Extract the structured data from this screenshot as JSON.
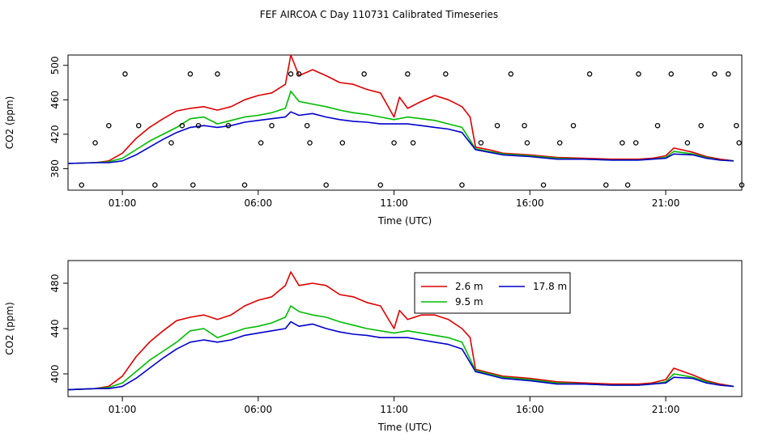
{
  "title": "FEF AIRCOA C  Day 110731  Calibrated Timeseries",
  "colors": {
    "s1": "#dd0000",
    "s2": "#00bb00",
    "s3": "#0000cc",
    "axis": "#000000"
  },
  "chart_data": [
    {
      "type": "line",
      "panel": "top",
      "xlabel": "Time (UTC)",
      "ylabel": "CO2 (ppm)",
      "xlim": [
        -1,
        23.8
      ],
      "ylim": [
        355,
        512
      ],
      "xticks": [
        1,
        6,
        11,
        16,
        21
      ],
      "xtick_labels": [
        "01:00",
        "06:00",
        "11:00",
        "16:00",
        "21:00"
      ],
      "yticks": [
        380,
        420,
        460,
        500
      ],
      "ytick_labels": [
        "380",
        "420",
        "460",
        "500"
      ],
      "series": [
        {
          "name": "2.6 m",
          "color": "#dd0000",
          "x": [
            -1,
            0,
            0.5,
            1,
            1.5,
            2,
            2.5,
            3,
            3.5,
            4,
            4.5,
            5,
            5.5,
            6,
            6.5,
            7,
            7.2,
            7.5,
            8,
            8.5,
            9,
            9.5,
            10,
            10.5,
            11,
            11.2,
            11.5,
            12,
            12.5,
            13,
            13.5,
            13.8,
            14,
            14.5,
            15,
            16,
            17,
            18,
            19,
            20,
            20.5,
            21,
            21.3,
            22,
            22.5,
            23,
            23.5
          ],
          "y": [
            386,
            387,
            389,
            398,
            415,
            428,
            438,
            447,
            450,
            452,
            448,
            452,
            460,
            465,
            468,
            478,
            512,
            488,
            495,
            488,
            480,
            478,
            472,
            468,
            440,
            463,
            450,
            458,
            465,
            460,
            452,
            440,
            405,
            402,
            398,
            396,
            393,
            392,
            391,
            391,
            392,
            395,
            404,
            399,
            394,
            391,
            389
          ]
        },
        {
          "name": "9.5 m",
          "color": "#00bb00",
          "x": [
            -1,
            0,
            0.5,
            1,
            1.5,
            2,
            2.5,
            3,
            3.5,
            4,
            4.5,
            5,
            5.5,
            6,
            6.5,
            7,
            7.2,
            7.5,
            8,
            8.5,
            9,
            9.5,
            10,
            10.5,
            11,
            11.5,
            12,
            12.5,
            13,
            13.5,
            14,
            14.5,
            15,
            16,
            17,
            18,
            19,
            20,
            20.5,
            21,
            21.3,
            22,
            22.5,
            23,
            23.5
          ],
          "y": [
            386,
            387,
            388,
            392,
            402,
            412,
            420,
            428,
            438,
            440,
            432,
            436,
            440,
            442,
            445,
            450,
            470,
            458,
            455,
            452,
            448,
            445,
            443,
            440,
            437,
            440,
            438,
            436,
            432,
            428,
            403,
            400,
            397,
            395,
            392,
            391,
            390,
            390,
            391,
            393,
            400,
            397,
            393,
            390,
            389
          ]
        },
        {
          "name": "17.8 m",
          "color": "#0000cc",
          "x": [
            -1,
            0,
            0.5,
            1,
            1.5,
            2,
            2.5,
            3,
            3.5,
            4,
            4.5,
            5,
            5.5,
            6,
            6.5,
            7,
            7.2,
            7.5,
            8,
            8.5,
            9,
            9.5,
            10,
            10.5,
            11,
            11.5,
            12,
            12.5,
            13,
            13.5,
            14,
            14.5,
            15,
            16,
            17,
            18,
            19,
            20,
            20.5,
            21,
            21.3,
            22,
            22.5,
            23,
            23.5
          ],
          "y": [
            386,
            387,
            387,
            389,
            396,
            405,
            414,
            422,
            428,
            430,
            428,
            430,
            434,
            436,
            438,
            440,
            446,
            442,
            444,
            440,
            437,
            435,
            434,
            432,
            432,
            432,
            430,
            428,
            426,
            422,
            402,
            399,
            396,
            394,
            391,
            391,
            390,
            390,
            391,
            392,
            397,
            396,
            392,
            390,
            389
          ]
        }
      ],
      "points": [
        {
          "name": "marker",
          "x": [
            -0.5,
            0,
            0.5,
            1.1,
            1.6,
            2.2,
            2.8,
            3.2,
            3.5,
            3.6,
            3.8,
            4.5,
            4.9,
            5.5,
            6.1,
            6.5,
            7.2,
            7.5,
            7.8,
            7.9,
            8.5,
            9.1,
            9.9,
            10.5,
            11,
            11.5,
            11.7,
            12.9,
            13.5,
            14.2,
            14.8,
            15.3,
            15.8,
            15.9,
            16.5,
            17.1,
            17.6,
            18.2,
            18.8,
            19.4,
            19.6,
            19.9,
            20,
            20.7,
            21.2,
            21.8,
            22.3,
            22.8,
            23.3,
            23.6,
            23.7,
            23.8
          ],
          "y": [
            361,
            410,
            430,
            490,
            430,
            361,
            410,
            430,
            490,
            361,
            430,
            490,
            430,
            361,
            410,
            430,
            490,
            490,
            430,
            410,
            361,
            410,
            490,
            361,
            410,
            490,
            410,
            490,
            361,
            410,
            430,
            490,
            430,
            410,
            361,
            410,
            430,
            490,
            361,
            410,
            361,
            410,
            490,
            430,
            490,
            410,
            430,
            490,
            490,
            430,
            410,
            361
          ]
        }
      ]
    },
    {
      "type": "line",
      "panel": "bottom",
      "xlabel": "Time (UTC)",
      "ylabel": "CO2 (ppm)",
      "xlim": [
        -1,
        23.8
      ],
      "ylim": [
        380,
        500
      ],
      "xticks": [
        1,
        6,
        11,
        16,
        21
      ],
      "xtick_labels": [
        "01:00",
        "06:00",
        "11:00",
        "16:00",
        "21:00"
      ],
      "yticks": [
        400,
        440,
        480
      ],
      "ytick_labels": [
        "400",
        "440",
        "480"
      ],
      "legend": {
        "entries": [
          "2.6 m",
          "9.5 m",
          "17.8 m"
        ],
        "placement": "top-right"
      },
      "series": [
        {
          "name": "2.6 m",
          "color": "#dd0000",
          "x": [
            -1,
            0,
            0.5,
            1,
            1.5,
            2,
            2.5,
            3,
            3.5,
            4,
            4.5,
            5,
            5.5,
            6,
            6.5,
            7,
            7.2,
            7.5,
            8,
            8.5,
            9,
            9.5,
            10,
            10.5,
            11,
            11.2,
            11.5,
            12,
            12.5,
            13,
            13.5,
            13.8,
            14,
            14.5,
            15,
            16,
            17,
            18,
            19,
            20,
            20.5,
            21,
            21.3,
            22,
            22.5,
            23,
            23.5
          ],
          "y": [
            386,
            387,
            389,
            398,
            415,
            428,
            438,
            447,
            450,
            452,
            448,
            452,
            460,
            465,
            468,
            478,
            490,
            478,
            480,
            478,
            470,
            468,
            463,
            460,
            440,
            456,
            448,
            452,
            452,
            448,
            440,
            432,
            404,
            401,
            398,
            396,
            393,
            392,
            391,
            391,
            392,
            395,
            405,
            399,
            394,
            391,
            389
          ]
        },
        {
          "name": "9.5 m",
          "color": "#00bb00",
          "x": [
            -1,
            0,
            0.5,
            1,
            1.5,
            2,
            2.5,
            3,
            3.5,
            4,
            4.5,
            5,
            5.5,
            6,
            6.5,
            7,
            7.2,
            7.5,
            8,
            8.5,
            9,
            9.5,
            10,
            10.5,
            11,
            11.5,
            12,
            12.5,
            13,
            13.5,
            14,
            14.5,
            15,
            16,
            17,
            18,
            19,
            20,
            20.5,
            21,
            21.3,
            22,
            22.5,
            23,
            23.5
          ],
          "y": [
            386,
            387,
            388,
            392,
            402,
            412,
            420,
            428,
            438,
            440,
            432,
            436,
            440,
            442,
            445,
            450,
            460,
            455,
            452,
            450,
            446,
            443,
            440,
            438,
            436,
            438,
            436,
            434,
            432,
            428,
            403,
            400,
            397,
            395,
            392,
            391,
            390,
            390,
            391,
            393,
            400,
            397,
            393,
            390,
            389
          ]
        },
        {
          "name": "17.8 m",
          "color": "#0000cc",
          "x": [
            -1,
            0,
            0.5,
            1,
            1.5,
            2,
            2.5,
            3,
            3.5,
            4,
            4.5,
            5,
            5.5,
            6,
            6.5,
            7,
            7.2,
            7.5,
            8,
            8.5,
            9,
            9.5,
            10,
            10.5,
            11,
            11.5,
            12,
            12.5,
            13,
            13.5,
            14,
            14.5,
            15,
            16,
            17,
            18,
            19,
            20,
            20.5,
            21,
            21.3,
            22,
            22.5,
            23,
            23.5
          ],
          "y": [
            386,
            387,
            387,
            389,
            396,
            405,
            414,
            422,
            428,
            430,
            428,
            430,
            434,
            436,
            438,
            440,
            446,
            442,
            444,
            440,
            437,
            435,
            434,
            432,
            432,
            432,
            430,
            428,
            426,
            422,
            402,
            399,
            396,
            394,
            391,
            391,
            390,
            390,
            391,
            392,
            397,
            396,
            392,
            390,
            389
          ]
        }
      ]
    }
  ]
}
